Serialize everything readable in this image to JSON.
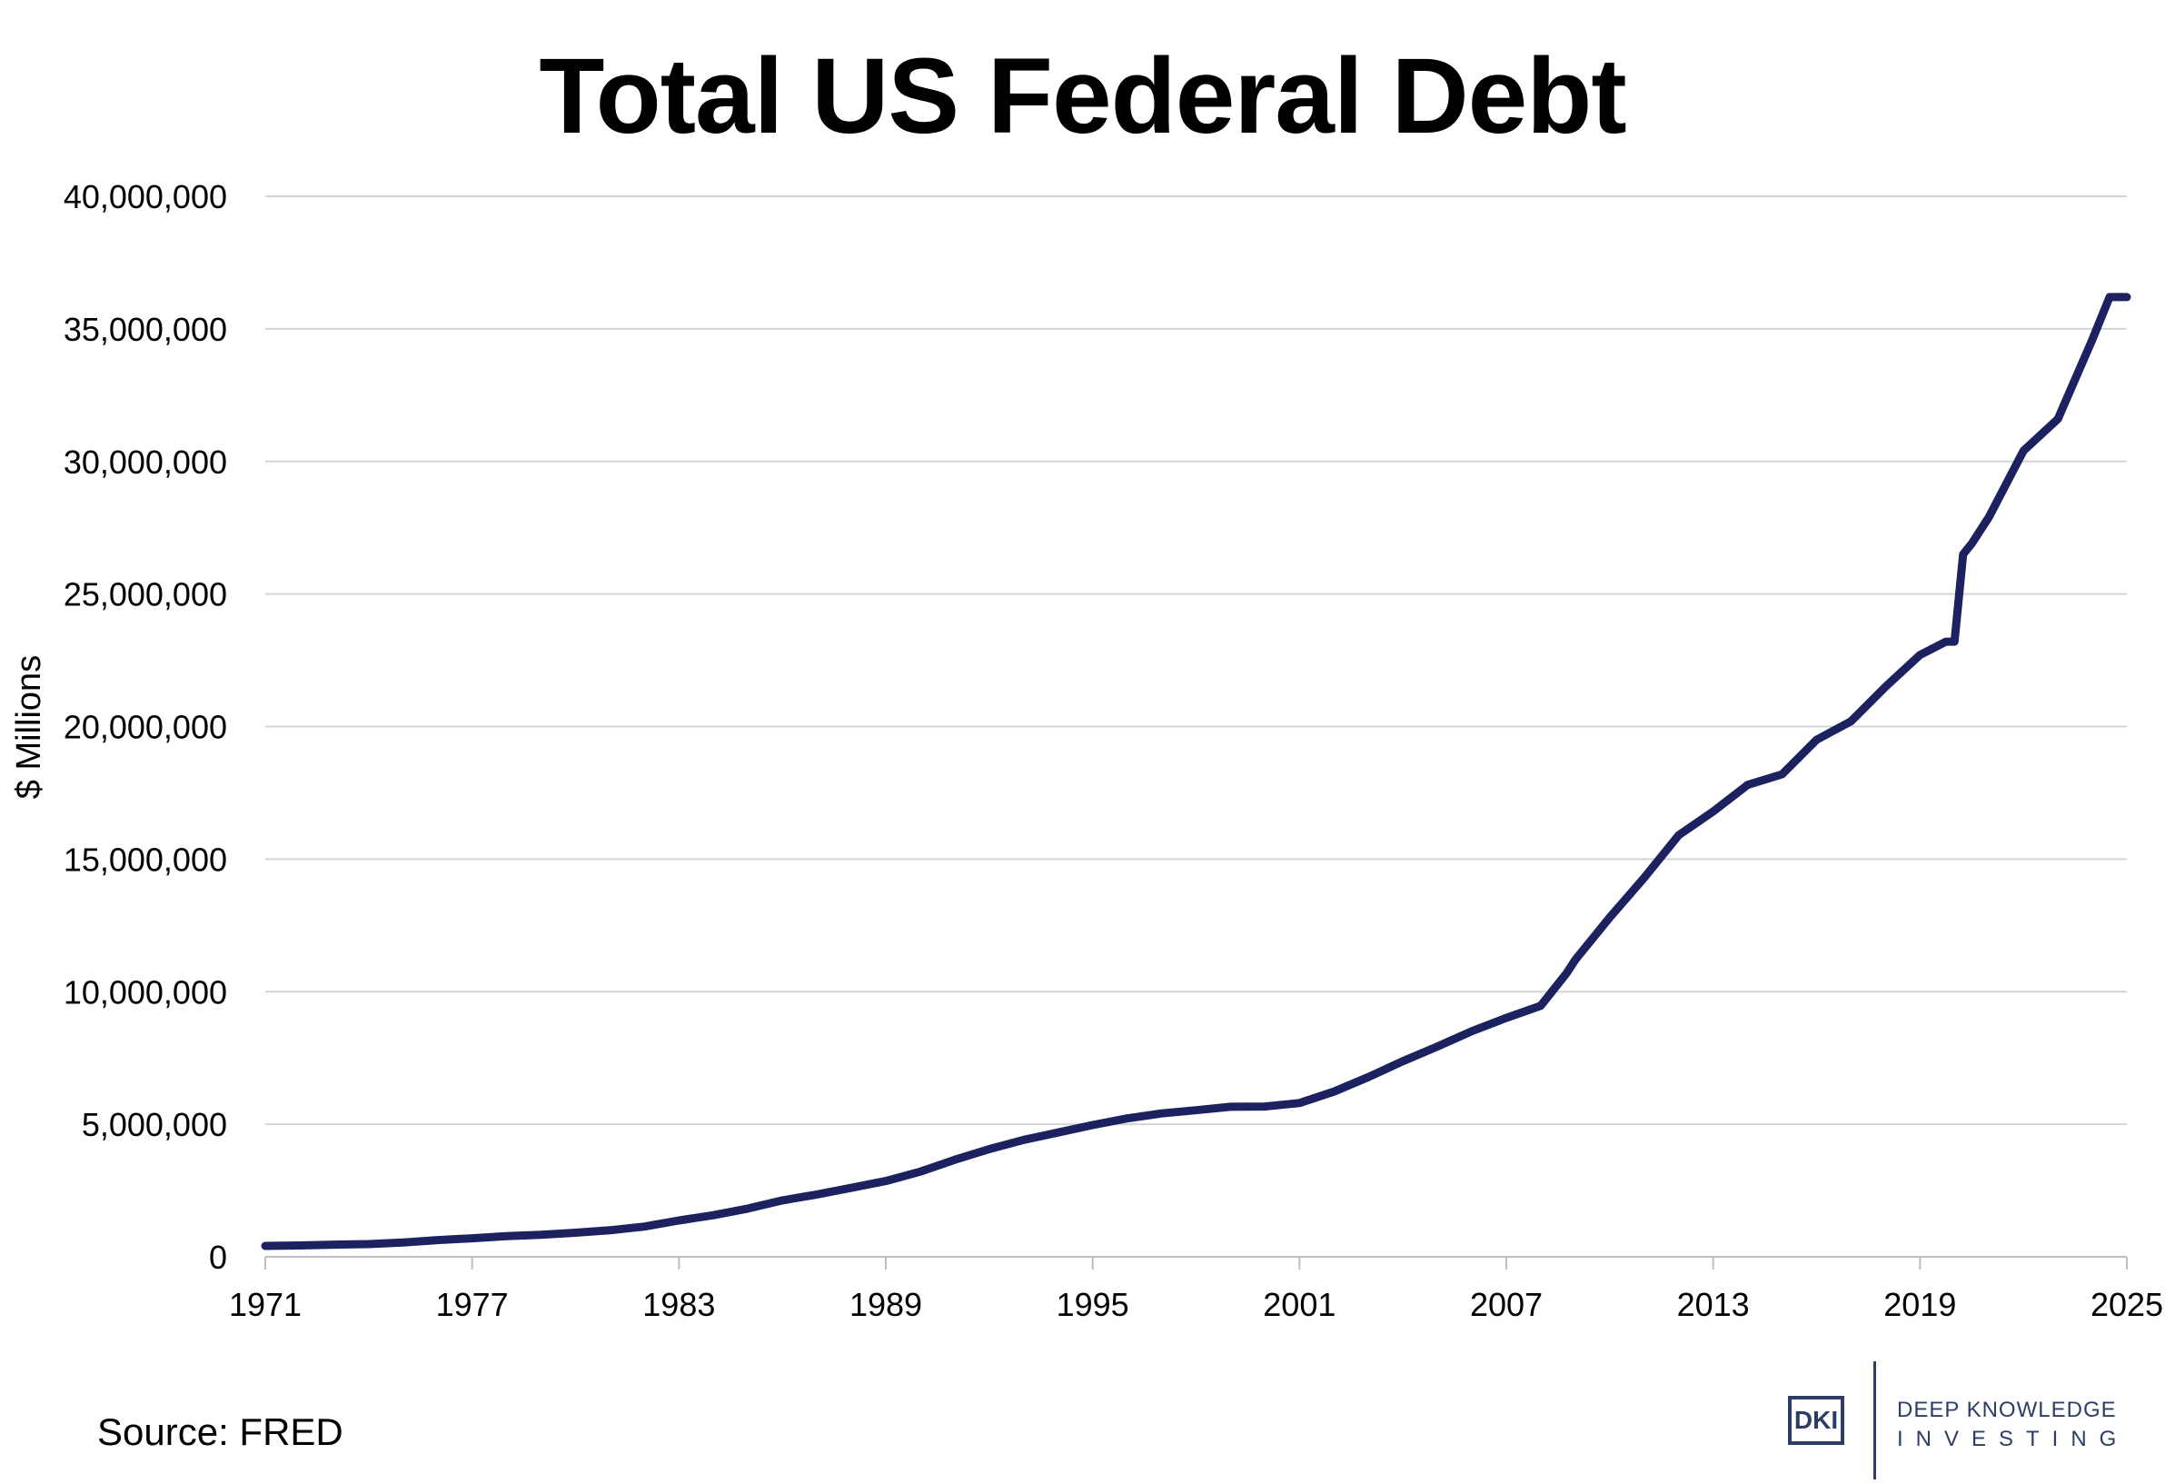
{
  "chart_data": {
    "type": "line",
    "title": "Total US Federal Debt",
    "ylabel": "$ Millions",
    "xlabel": "",
    "xlim": [
      1971,
      2025
    ],
    "ylim": [
      0,
      40000000
    ],
    "grid": true,
    "x_ticks": [
      "1971",
      "1977",
      "1983",
      "1989",
      "1995",
      "2001",
      "2007",
      "2013",
      "2019",
      "2025"
    ],
    "y_ticks": [
      "0",
      "5,000,000",
      "10,000,000",
      "15,000,000",
      "20,000,000",
      "25,000,000",
      "30,000,000",
      "35,000,000",
      "40,000,000"
    ],
    "line_color": "#1c2260",
    "series": [
      {
        "x": [
          1971,
          1972,
          1973,
          1974,
          1975,
          1976,
          1977,
          1978,
          1979,
          1980,
          1981,
          1982,
          1983,
          1984,
          1985,
          1986,
          1987,
          1988,
          1989,
          1990,
          1991,
          1992,
          1993,
          1994,
          1995,
          1996,
          1997,
          1998,
          1999,
          2000,
          2001,
          2002,
          2003,
          2004,
          2005,
          2006,
          2007,
          2008,
          2008.75,
          2009,
          2010,
          2011,
          2012,
          2013,
          2014,
          2015,
          2016,
          2017,
          2018,
          2019,
          2019.75,
          2020,
          2020.25,
          2020.5,
          2021,
          2022,
          2023,
          2024,
          2024.5,
          2025
        ],
        "y": [
          410000,
          430000,
          460000,
          480000,
          540000,
          630000,
          700000,
          780000,
          830000,
          910000,
          1000000,
          1140000,
          1370000,
          1570000,
          1820000,
          2130000,
          2350000,
          2600000,
          2860000,
          3210000,
          3660000,
          4060000,
          4410000,
          4690000,
          4970000,
          5220000,
          5410000,
          5530000,
          5660000,
          5670000,
          5800000,
          6230000,
          6780000,
          7380000,
          7930000,
          8510000,
          9010000,
          9470000,
          10700000,
          11200000,
          12800000,
          14300000,
          15900000,
          16800000,
          17800000,
          18200000,
          19500000,
          20200000,
          21500000,
          22700000,
          23200000,
          23200000,
          26500000,
          26900000,
          27900000,
          30400000,
          31600000,
          34600000,
          36200000,
          36200000
        ]
      }
    ]
  },
  "source": "Source: FRED",
  "logo": {
    "mark": "DKI",
    "line1": "DEEP KNOWLEDGE",
    "line2": "INVESTING"
  }
}
